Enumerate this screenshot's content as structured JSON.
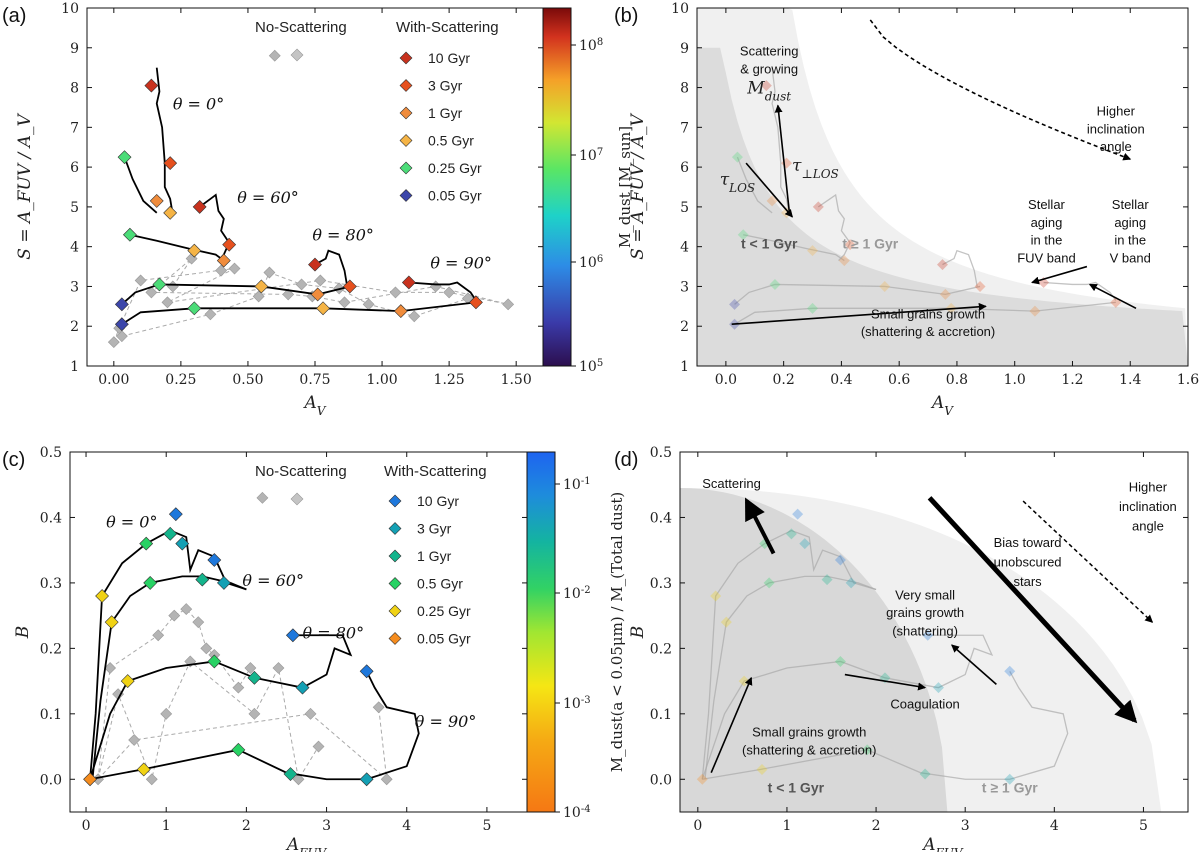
{
  "chart_data": [
    {
      "panel": "(a)",
      "type": "scatter",
      "xlabel": "A_V",
      "ylabel": "S = A_FUV / A_V",
      "xlim": [
        -0.1,
        1.6
      ],
      "ylim": [
        1,
        10
      ],
      "xticks": [
        "0.00",
        "0.25",
        "0.50",
        "0.75",
        "1.00",
        "1.25",
        "1.50"
      ],
      "yticks": [
        "1",
        "2",
        "3",
        "4",
        "5",
        "6",
        "7",
        "8",
        "9",
        "10"
      ],
      "legend": {
        "no_scattering": "No-Scattering",
        "with_scattering": "With-Scattering",
        "entries": [
          {
            "label": "10 Gyr",
            "color": "#c8321e"
          },
          {
            "label": "3 Gyr",
            "color": "#e6501e"
          },
          {
            "label": "1 Gyr",
            "color": "#f08c3c"
          },
          {
            "label": "0.5 Gyr",
            "color": "#f5b446"
          },
          {
            "label": "0.25 Gyr",
            "color": "#4bdc78"
          },
          {
            "label": "0.05 Gyr",
            "color": "#3c46aa"
          }
        ]
      },
      "colorbar": {
        "label": "M_dust [M_sun]",
        "ticks": [
          "10^5",
          "10^6",
          "10^7",
          "10^8"
        ],
        "scale": "log"
      },
      "theta_labels": [
        "θ = 0°",
        "θ = 60°",
        "θ = 80°",
        "θ = 90°"
      ],
      "series": [
        {
          "path": [
            [
              0.16,
              8.5
            ],
            [
              0.17,
              7.9
            ],
            [
              0.16,
              7.6
            ],
            [
              0.18,
              7.0
            ],
            [
              0.19,
              6.1
            ],
            [
              0.19,
              5.5
            ],
            [
              0.21,
              5.2
            ],
            [
              0.22,
              4.8
            ]
          ],
          "markers": [
            [
              0.14,
              8.05,
              "#c8321e"
            ],
            [
              0.21,
              6.1,
              "#e6501e"
            ],
            [
              0.16,
              5.15,
              "#f08c3c"
            ],
            [
              0.21,
              4.85,
              "#f5b446"
            ]
          ]
        },
        {
          "path": [
            [
              0.04,
              6.25
            ],
            [
              0.07,
              5.7
            ],
            [
              0.11,
              5.15
            ],
            [
              0.16,
              4.85
            ]
          ],
          "markers": [
            [
              0.04,
              6.25,
              "#4bdc78"
            ]
          ]
        },
        {
          "path": [
            [
              0.32,
              5.0
            ],
            [
              0.36,
              5.2
            ],
            [
              0.38,
              5.3
            ],
            [
              0.39,
              4.9
            ],
            [
              0.41,
              4.7
            ],
            [
              0.4,
              4.4
            ],
            [
              0.43,
              4.1
            ],
            [
              0.41,
              3.8
            ],
            [
              0.39,
              3.65
            ]
          ],
          "markers": [
            [
              0.32,
              5.0,
              "#c8321e"
            ],
            [
              0.43,
              4.05,
              "#e6501e"
            ],
            [
              0.41,
              3.65,
              "#f08c3c"
            ],
            [
              0.3,
              3.9,
              "#f5b446"
            ]
          ]
        },
        {
          "path": [
            [
              0.06,
              4.3
            ],
            [
              0.16,
              4.15
            ],
            [
              0.28,
              3.95
            ],
            [
              0.38,
              3.8
            ],
            [
              0.41,
              3.65
            ]
          ],
          "markers": [
            [
              0.06,
              4.3,
              "#4bdc78"
            ]
          ]
        },
        {
          "path": [
            [
              0.75,
              3.55
            ],
            [
              0.79,
              3.7
            ],
            [
              0.8,
              3.9
            ],
            [
              0.84,
              3.8
            ],
            [
              0.86,
              3.4
            ],
            [
              0.87,
              3.0
            ]
          ],
          "markers": [
            [
              0.75,
              3.55,
              "#c8321e"
            ],
            [
              0.88,
              3.0,
              "#e6501e"
            ]
          ]
        },
        {
          "path": [
            [
              1.1,
              3.1
            ],
            [
              1.2,
              3.05
            ],
            [
              1.25,
              3.05
            ],
            [
              1.28,
              3.1
            ],
            [
              1.33,
              2.85
            ],
            [
              1.35,
              2.65
            ]
          ],
          "markers": [
            [
              1.1,
              3.1,
              "#c8321e"
            ],
            [
              1.35,
              2.6,
              "#e6501e"
            ]
          ]
        },
        {
          "path": [
            [
              0.03,
              2.55
            ],
            [
              0.08,
              2.85
            ],
            [
              0.17,
              3.05
            ],
            [
              0.55,
              3.0
            ],
            [
              0.76,
              2.8
            ],
            [
              0.88,
              3.0
            ]
          ],
          "markers": [
            [
              0.03,
              2.55,
              "#3c46aa"
            ],
            [
              0.17,
              3.05,
              "#4bdc78"
            ],
            [
              0.55,
              3.0,
              "#f5b446"
            ],
            [
              0.76,
              2.8,
              "#f08c3c"
            ]
          ]
        },
        {
          "path": [
            [
              0.03,
              2.05
            ],
            [
              0.1,
              2.35
            ],
            [
              0.3,
              2.45
            ],
            [
              0.78,
              2.45
            ],
            [
              1.07,
              2.38
            ],
            [
              1.35,
              2.6
            ]
          ],
          "markers": [
            [
              0.03,
              2.05,
              "#3c46aa"
            ],
            [
              0.3,
              2.45,
              "#4bdc78"
            ],
            [
              0.78,
              2.45,
              "#f5b446"
            ],
            [
              1.07,
              2.38,
              "#f08c3c"
            ]
          ]
        }
      ],
      "no_scattering_points": [
        [
          0.6,
          8.8
        ],
        [
          0.0,
          1.6
        ],
        [
          0.03,
          1.75
        ],
        [
          0.02,
          1.95
        ],
        [
          0.1,
          3.15
        ],
        [
          0.22,
          3.0
        ],
        [
          0.29,
          3.7
        ],
        [
          0.4,
          3.4
        ],
        [
          0.45,
          3.45
        ],
        [
          0.14,
          2.85
        ],
        [
          0.2,
          2.6
        ],
        [
          0.36,
          2.3
        ],
        [
          0.54,
          2.75
        ],
        [
          0.65,
          2.8
        ],
        [
          0.58,
          3.35
        ],
        [
          0.7,
          3.05
        ],
        [
          0.74,
          2.75
        ],
        [
          0.77,
          3.15
        ],
        [
          0.84,
          2.95
        ],
        [
          0.86,
          2.6
        ],
        [
          0.95,
          2.55
        ],
        [
          1.05,
          2.85
        ],
        [
          1.12,
          2.25
        ],
        [
          1.2,
          3.0
        ],
        [
          1.25,
          2.85
        ],
        [
          1.32,
          2.7
        ],
        [
          1.47,
          2.55
        ]
      ]
    },
    {
      "panel": "(b)",
      "type": "scatter",
      "xlabel": "A_V",
      "ylabel": "S = A_FUV / A_V",
      "xlim": [
        -0.1,
        1.6
      ],
      "ylim": [
        1,
        10
      ],
      "xticks": [
        "0.0",
        "0.2",
        "0.4",
        "0.6",
        "0.8",
        "1.0",
        "1.2",
        "1.4",
        "1.6"
      ],
      "yticks": [
        "1",
        "2",
        "3",
        "4",
        "5",
        "6",
        "7",
        "8",
        "9",
        "10"
      ],
      "annotations": [
        "Scattering",
        "& growing",
        "M_dust",
        "τ_LOS",
        "τ_⊥LOS",
        "Higher",
        "inclination",
        "angle",
        "Stellar",
        "aging",
        "in the",
        "FUV band",
        "Stellar",
        "aging",
        "in the",
        "V band",
        "Small grains growth",
        "(shattering & accretion)",
        "t < 1 Gyr",
        "t ≥ 1 Gyr"
      ]
    },
    {
      "panel": "(c)",
      "type": "scatter",
      "xlabel": "A_FUV",
      "ylabel": "B",
      "xlim": [
        -0.2,
        5.5
      ],
      "ylim": [
        -0.05,
        0.5
      ],
      "xticks": [
        "0",
        "1",
        "2",
        "3",
        "4",
        "5"
      ],
      "yticks": [
        "0.0",
        "0.1",
        "0.2",
        "0.3",
        "0.4",
        "0.5"
      ],
      "legend": {
        "no_scattering": "No-Scattering",
        "with_scattering": "With-Scattering",
        "entries": [
          {
            "label": "10 Gyr",
            "color": "#1e78dc"
          },
          {
            "label": "3 Gyr",
            "color": "#14a0b4"
          },
          {
            "label": "1 Gyr",
            "color": "#14b48c"
          },
          {
            "label": "0.5 Gyr",
            "color": "#28d264"
          },
          {
            "label": "0.25 Gyr",
            "color": "#f0d214"
          },
          {
            "label": "0.05 Gyr",
            "color": "#f58c1e"
          }
        ]
      },
      "colorbar": {
        "label": "M_dust(a < 0.05μm) / M_(Total dust)",
        "ticks": [
          "10^-4",
          "10^-3",
          "10^-2",
          "10^-1"
        ],
        "scale": "log"
      },
      "theta_labels": [
        "θ = 0°",
        "θ = 60°",
        "θ = 80°",
        "θ = 90°"
      ],
      "series": [
        {
          "path": [
            [
              0.05,
              0.0
            ],
            [
              0.12,
              0.1
            ],
            [
              0.2,
              0.28
            ],
            [
              0.45,
              0.33
            ],
            [
              0.75,
              0.36
            ],
            [
              1.05,
              0.38
            ],
            [
              1.25,
              0.37
            ],
            [
              1.3,
              0.32
            ],
            [
              1.4,
              0.35
            ],
            [
              1.6,
              0.34
            ],
            [
              1.75,
              0.3
            ],
            [
              2.0,
              0.29
            ]
          ],
          "markers": [
            [
              1.12,
              0.405,
              "#1e78dc"
            ],
            [
              1.2,
              0.36,
              "#14a0b4"
            ],
            [
              1.05,
              0.375,
              "#14b48c"
            ],
            [
              0.75,
              0.36,
              "#28d264"
            ],
            [
              0.2,
              0.28,
              "#f0d214"
            ],
            [
              1.6,
              0.335,
              "#1e78dc"
            ],
            [
              1.72,
              0.3,
              "#14a0b4"
            ]
          ]
        },
        {
          "path": [
            [
              0.08,
              0.0
            ],
            [
              0.18,
              0.12
            ],
            [
              0.32,
              0.24
            ],
            [
              0.55,
              0.28
            ],
            [
              0.8,
              0.3
            ],
            [
              1.2,
              0.31
            ],
            [
              1.45,
              0.31
            ],
            [
              1.8,
              0.3
            ],
            [
              2.0,
              0.29
            ]
          ],
          "markers": [
            [
              0.32,
              0.24,
              "#f0d214"
            ],
            [
              0.8,
              0.3,
              "#28d264"
            ],
            [
              1.45,
              0.305,
              "#14b48c"
            ]
          ]
        },
        {
          "path": [
            [
              0.05,
              0.0
            ],
            [
              0.3,
              0.1
            ],
            [
              0.52,
              0.15
            ],
            [
              1.0,
              0.17
            ],
            [
              1.6,
              0.18
            ],
            [
              2.1,
              0.155
            ],
            [
              2.7,
              0.14
            ],
            [
              3.0,
              0.16
            ],
            [
              3.1,
              0.2
            ],
            [
              3.3,
              0.19
            ],
            [
              3.2,
              0.22
            ],
            [
              2.6,
              0.22
            ]
          ],
          "markers": [
            [
              0.52,
              0.15,
              "#f0d214"
            ],
            [
              1.6,
              0.18,
              "#28d264"
            ],
            [
              2.1,
              0.155,
              "#14b48c"
            ],
            [
              2.7,
              0.14,
              "#14a0b4"
            ],
            [
              2.58,
              0.22,
              "#1e78dc"
            ]
          ]
        },
        {
          "path": [
            [
              0.05,
              0.0
            ],
            [
              0.7,
              0.015
            ],
            [
              1.3,
              0.03
            ],
            [
              1.9,
              0.045
            ],
            [
              2.5,
              0.01
            ],
            [
              3.0,
              0.0
            ],
            [
              3.5,
              0.0
            ],
            [
              4.0,
              0.02
            ],
            [
              4.15,
              0.07
            ],
            [
              4.1,
              0.1
            ],
            [
              3.75,
              0.11
            ],
            [
              3.6,
              0.14
            ],
            [
              3.5,
              0.165
            ]
          ],
          "markers": [
            [
              0.72,
              0.015,
              "#f0d214"
            ],
            [
              1.9,
              0.045,
              "#28d264"
            ],
            [
              2.55,
              0.008,
              "#14b48c"
            ],
            [
              3.5,
              0.0,
              "#14a0b4"
            ],
            [
              3.5,
              0.165,
              "#1e78dc"
            ],
            [
              0.05,
              0.0,
              "#f58c1e"
            ]
          ]
        }
      ],
      "no_scattering_points": [
        [
          2.2,
          0.43
        ],
        [
          0.15,
          0.0
        ],
        [
          0.3,
          0.17
        ],
        [
          0.4,
          0.13
        ],
        [
          0.6,
          0.06
        ],
        [
          0.9,
          0.22
        ],
        [
          0.82,
          0.0
        ],
        [
          1.0,
          0.1
        ],
        [
          1.1,
          0.25
        ],
        [
          1.25,
          0.26
        ],
        [
          1.4,
          0.24
        ],
        [
          1.5,
          0.2
        ],
        [
          1.3,
          0.18
        ],
        [
          1.6,
          0.19
        ],
        [
          1.9,
          0.14
        ],
        [
          2.1,
          0.1
        ],
        [
          2.05,
          0.17
        ],
        [
          2.4,
          0.17
        ],
        [
          2.65,
          0.0
        ],
        [
          2.9,
          0.05
        ],
        [
          2.8,
          0.1
        ],
        [
          3.75,
          0.0
        ],
        [
          3.65,
          0.11
        ]
      ]
    },
    {
      "panel": "(d)",
      "type": "scatter",
      "xlabel": "A_FUV",
      "ylabel": "B",
      "xlim": [
        -0.2,
        5.5
      ],
      "ylim": [
        -0.05,
        0.5
      ],
      "xticks": [
        "0",
        "1",
        "2",
        "3",
        "4",
        "5"
      ],
      "yticks": [
        "0.0",
        "0.1",
        "0.2",
        "0.3",
        "0.4",
        "0.5"
      ],
      "annotations": [
        "Scattering",
        "Higher",
        "inclination",
        "angle",
        "Bias toward",
        "unobscured",
        "stars",
        "Very small",
        "grains growth",
        "(shattering)",
        "Coagulation",
        "Small grains growth",
        "(shattering & accretion)",
        "t < 1 Gyr",
        "t ≥ 1 Gyr"
      ]
    }
  ],
  "panel_labels": {
    "a": "(a)",
    "b": "(b)",
    "c": "(c)",
    "d": "(d)"
  }
}
